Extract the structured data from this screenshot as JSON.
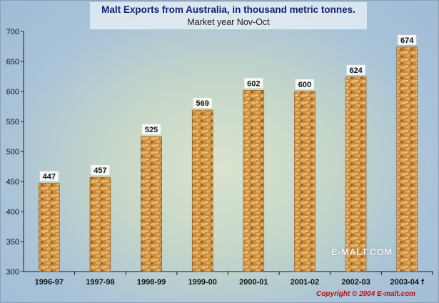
{
  "chart_data": {
    "type": "bar",
    "title": "Malt Exports from Australia, in thousand metric tonnes.",
    "subtitle": "Market year Nov-Oct",
    "categories": [
      "1996-97",
      "1997-98",
      "1998-99",
      "1999-00",
      "2000-01",
      "2001-02",
      "2002-03",
      "2003-04 f"
    ],
    "values": [
      447,
      457,
      525,
      569,
      602,
      600,
      624,
      674
    ],
    "ylim": [
      300,
      700
    ],
    "yticks": [
      300,
      350,
      400,
      450,
      500,
      550,
      600,
      650,
      700
    ],
    "grid": false,
    "legend": "none"
  },
  "watermark": "E-MALT.COM",
  "copyright": "Copyright © 2004  E-malt.com",
  "colors": {
    "title": "#14207a",
    "copyright": "#b0141a",
    "bar_grain": "#d69a4a",
    "axis": "#1a1a1a"
  }
}
